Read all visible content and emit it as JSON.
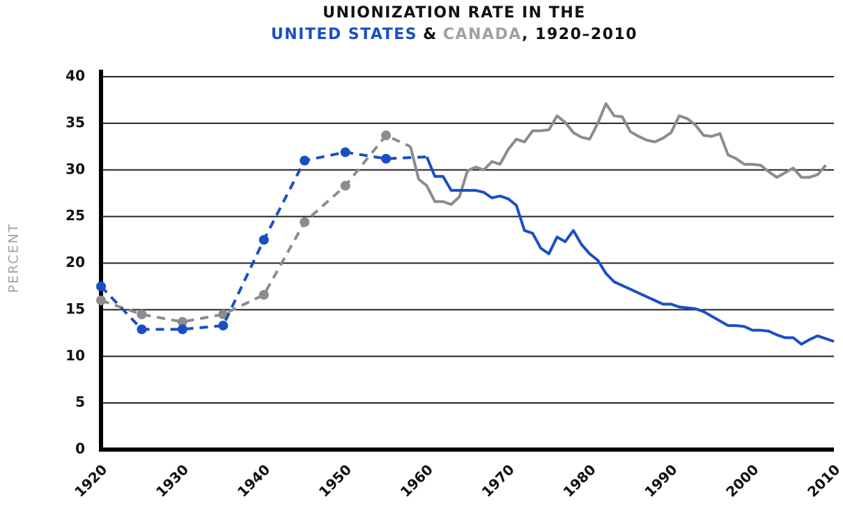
{
  "chart_data": {
    "type": "line",
    "title": "UNIONIZATION RATE IN THE",
    "title_joiner": "&",
    "title_suffix": ", 1920–2010",
    "y_label": "PERCENT",
    "xlim": [
      1920,
      2010
    ],
    "xticks": [
      1920,
      1930,
      1940,
      1950,
      1960,
      1970,
      1980,
      1990,
      2000,
      2010
    ],
    "ylim": [
      0,
      40
    ],
    "yticks": [
      0,
      5,
      10,
      15,
      20,
      25,
      30,
      35,
      40
    ],
    "grid": true,
    "series": [
      {
        "name": "CANADA",
        "color": "#8c8c8c",
        "dashed_until": 1958,
        "x": [
          1920,
          1925,
          1930,
          1935,
          1940,
          1945,
          1950,
          1955,
          1958,
          1959,
          1960,
          1961,
          1962,
          1963,
          1964,
          1965,
          1966,
          1967,
          1968,
          1969,
          1970,
          1971,
          1972,
          1973,
          1974,
          1975,
          1976,
          1977,
          1978,
          1979,
          1980,
          1981,
          1982,
          1983,
          1984,
          1985,
          1986,
          1987,
          1988,
          1989,
          1990,
          1991,
          1992,
          1993,
          1994,
          1995,
          1996,
          1997,
          1998,
          1999,
          2000,
          2001,
          2002,
          2003,
          2004,
          2005,
          2006,
          2007,
          2008,
          2009
        ],
        "values": [
          16.0,
          14.5,
          13.7,
          14.5,
          16.6,
          24.4,
          28.3,
          33.7,
          32.5,
          29.0,
          28.3,
          26.6,
          26.6,
          26.3,
          27.1,
          29.9,
          30.3,
          30.0,
          30.9,
          30.6,
          32.2,
          33.3,
          33.0,
          34.2,
          34.2,
          34.3,
          35.8,
          35.1,
          34.0,
          33.5,
          33.3,
          35.0,
          37.1,
          35.8,
          35.7,
          34.1,
          33.6,
          33.2,
          33.0,
          33.4,
          34.0,
          35.8,
          35.5,
          34.8,
          33.7,
          33.6,
          33.9,
          31.6,
          31.2,
          30.6,
          30.6,
          30.5,
          29.8,
          29.2,
          29.7,
          30.2,
          29.2,
          29.2,
          29.5,
          30.5
        ]
      },
      {
        "name": "UNITED STATES",
        "color": "#1a4fc4",
        "dashed_until": 1960,
        "x": [
          1920,
          1925,
          1930,
          1935,
          1940,
          1945,
          1950,
          1955,
          1960,
          1961,
          1962,
          1963,
          1964,
          1965,
          1966,
          1967,
          1968,
          1969,
          1970,
          1971,
          1972,
          1973,
          1974,
          1975,
          1976,
          1977,
          1978,
          1979,
          1980,
          1981,
          1982,
          1983,
          1984,
          1985,
          1986,
          1987,
          1988,
          1989,
          1990,
          1991,
          1992,
          1993,
          1994,
          1995,
          1996,
          1997,
          1998,
          1999,
          2000,
          2001,
          2002,
          2003,
          2004,
          2005,
          2006,
          2007,
          2008,
          2009,
          2010
        ],
        "values": [
          17.5,
          12.9,
          12.9,
          13.3,
          22.5,
          31.0,
          31.9,
          31.2,
          31.4,
          29.3,
          29.3,
          27.8,
          27.8,
          27.8,
          27.8,
          27.6,
          27.0,
          27.2,
          26.9,
          26.2,
          23.5,
          23.2,
          21.6,
          21.0,
          22.8,
          22.3,
          23.5,
          22.0,
          21.0,
          20.3,
          18.9,
          18.0,
          17.6,
          17.2,
          16.8,
          16.4,
          16.0,
          15.6,
          15.6,
          15.3,
          15.2,
          15.1,
          14.8,
          14.3,
          13.8,
          13.3,
          13.3,
          13.2,
          12.8,
          12.8,
          12.7,
          12.3,
          12.0,
          12.0,
          11.3,
          11.8,
          12.2,
          11.9,
          11.6
        ]
      }
    ]
  }
}
